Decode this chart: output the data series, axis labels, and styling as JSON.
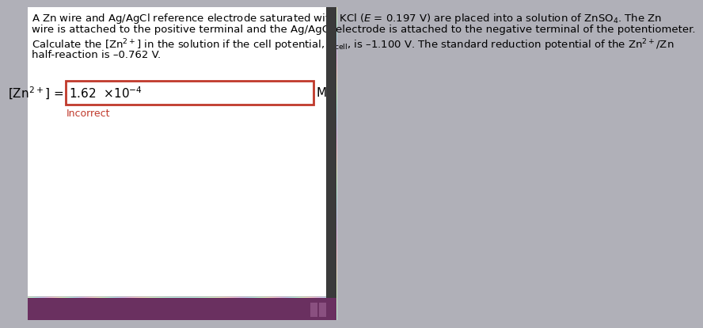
{
  "bg_outer": "#b0b0b8",
  "bg_page": "#e8e8e8",
  "taskbar_color": "#6a3060",
  "white_panel_color": "#f5f5f5",
  "text_line1": "A Zn wire and Ag/AgCl reference electrode saturated with KCl ($E$ = 0.197 V) are placed into a solution of ZnSO$_4$. The Zn",
  "text_line2": "wire is attached to the positive terminal and the Ag/AgCl electrode is attached to the negative terminal of the potentiometer.",
  "text_line3": "Calculate the [Zn$^{2+}$] in the solution if the cell potential, $E_\\mathrm{cell}$, is –1.100 V. The standard reduction potential of the Zn$^{2+}$/Zn",
  "text_line4": "half-reaction is –0.762 V.",
  "label_left": "[Zn$^{2+}$] =",
  "answer_value": "1.62  ×10$^{-4}$",
  "label_right": "M",
  "incorrect_text": "Incorrect",
  "box_border_color": "#c0392b",
  "incorrect_color": "#c0392b",
  "answer_fontsize": 11,
  "label_fontsize": 11,
  "text_fontsize": 9.5,
  "incorrect_fontsize": 9
}
